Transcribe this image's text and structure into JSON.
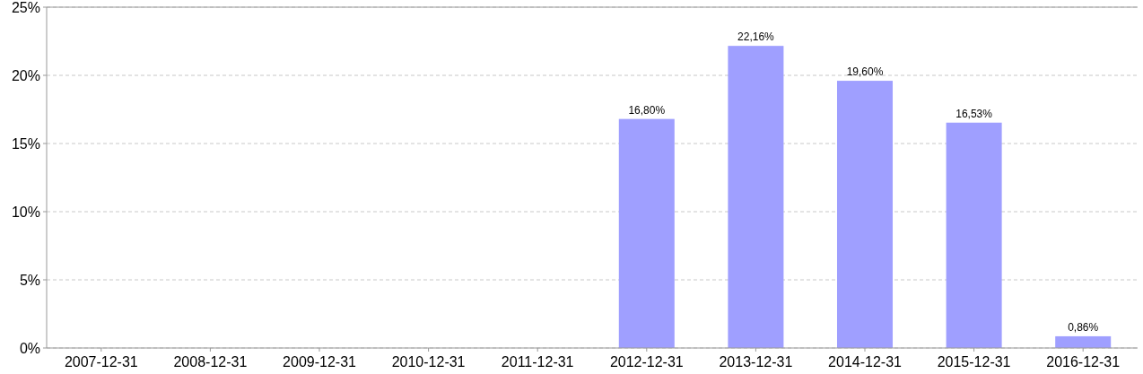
{
  "chart_data": {
    "type": "bar",
    "categories": [
      "2007-12-31",
      "2008-12-31",
      "2009-12-31",
      "2010-12-31",
      "2011-12-31",
      "2012-12-31",
      "2013-12-31",
      "2014-12-31",
      "2015-12-31",
      "2016-12-31"
    ],
    "values": [
      null,
      null,
      null,
      null,
      null,
      16.8,
      22.16,
      19.6,
      16.53,
      0.86
    ],
    "value_labels": [
      null,
      null,
      null,
      null,
      null,
      "16,80%",
      "22,16%",
      "19,60%",
      "16,53%",
      "0,86%"
    ],
    "color": "#9f9fff",
    "ylim": [
      0,
      25
    ],
    "yticks": [
      {
        "value": 0,
        "label": "0%"
      },
      {
        "value": 5,
        "label": "5%"
      },
      {
        "value": 10,
        "label": "10%"
      },
      {
        "value": 15,
        "label": "15%"
      },
      {
        "value": 20,
        "label": "20%"
      },
      {
        "value": 25,
        "label": "25%"
      }
    ],
    "grid": "y"
  }
}
